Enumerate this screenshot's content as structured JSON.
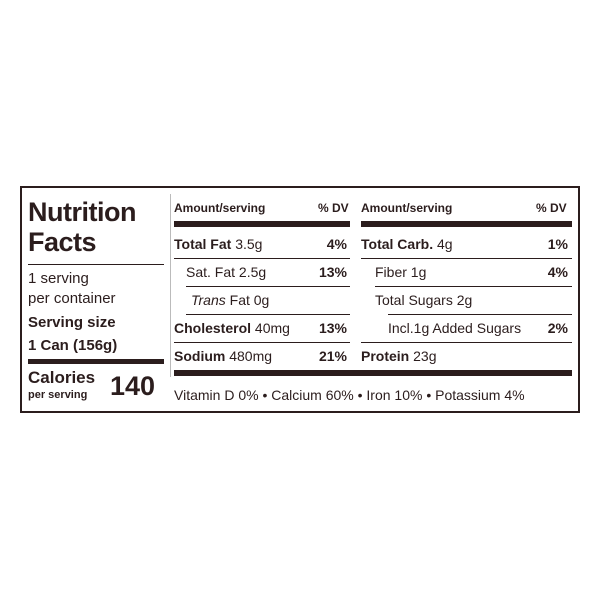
{
  "label": {
    "title_line1": "Nutrition",
    "title_line2": "Facts",
    "servings_line1": "1 serving",
    "servings_line2": "per container",
    "serving_size_label": "Serving size",
    "serving_size_value": "1 Can (156g)",
    "calories_label": "Calories",
    "calories_sublabel": "per serving",
    "calories_value": "140"
  },
  "columns": {
    "left_header_amount": "Amount/serving",
    "left_header_dv": "% DV",
    "right_header_amount": "Amount/serving",
    "right_header_dv": "% DV"
  },
  "left_rows": [
    {
      "name": "Total Fat",
      "amount": "3.5g",
      "dv": "4%"
    },
    {
      "name": "Sat. Fat",
      "amount": "2.5g",
      "dv": "13%"
    },
    {
      "name_italic": "Trans",
      "name": "Fat",
      "amount": "0g",
      "dv": ""
    },
    {
      "name": "Cholesterol",
      "amount": "40mg",
      "dv": "13%"
    },
    {
      "name": "Sodium",
      "amount": "480mg",
      "dv": "21%"
    }
  ],
  "right_rows": [
    {
      "name": "Total Carb.",
      "amount": "4g",
      "dv": "1%"
    },
    {
      "name": "Fiber",
      "amount": "1g",
      "dv": "4%"
    },
    {
      "name": "Total Sugars",
      "amount": "2g",
      "dv": ""
    },
    {
      "name": "Incl.1g Added Sugars",
      "amount": "",
      "dv": "2%"
    },
    {
      "name": "Protein",
      "amount": "23g",
      "dv": ""
    }
  ],
  "footer": {
    "vitamins": "Vitamin D 0% • Calcium 60% • Iron 10% • Potassium 4%"
  }
}
